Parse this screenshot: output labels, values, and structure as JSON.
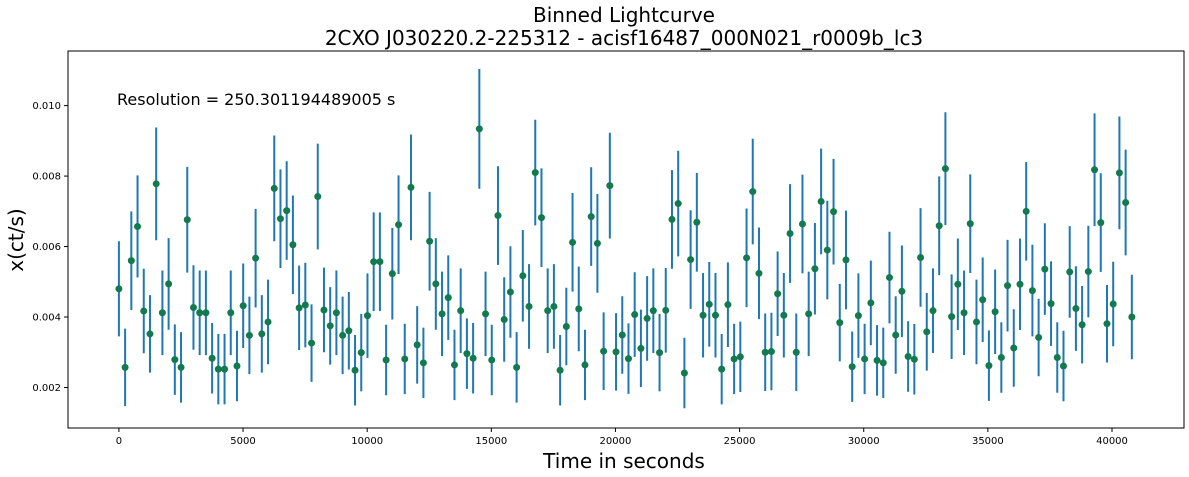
{
  "chart_data": {
    "type": "scatter",
    "title": [
      "Binned Lightcurve",
      "2CXO J030220.2-225312 - acisf16487_000N021_r0009b_lc3"
    ],
    "xlabel": "Time in seconds",
    "ylabel": "x(ct/s)",
    "annotation": "Resolution = 250.301194489005 s",
    "xlim": [
      -2050,
      42900
    ],
    "ylim": [
      0.00085,
      0.01155
    ],
    "xticks": [
      0,
      5000,
      10000,
      15000,
      20000,
      25000,
      30000,
      35000,
      40000
    ],
    "yticks": [
      0.002,
      0.004,
      0.006,
      0.008,
      0.01
    ],
    "xtick_labels": [
      "0",
      "5000",
      "10000",
      "15000",
      "20000",
      "25000",
      "30000",
      "35000",
      "40000"
    ],
    "ytick_labels": [
      "0.002",
      "0.004",
      "0.006",
      "0.008",
      "0.010"
    ],
    "grid": false,
    "errorbar_color": "#1f77b4",
    "marker_color": "#127a4e",
    "resolution_s": 250.301194489005,
    "series": [
      {
        "y": [
          0.0048,
          0.00257,
          0.0056,
          0.00657,
          0.00417,
          0.00352,
          0.00778,
          0.00412,
          0.00494,
          0.00279,
          0.00257,
          0.00676,
          0.00427,
          0.00412,
          0.00412,
          0.00283,
          0.00252,
          0.00252,
          0.00412,
          0.00261,
          0.00432,
          0.00348,
          0.00567,
          0.00352,
          0.00386,
          0.00765,
          0.00679,
          0.00702,
          0.00605,
          0.00426,
          0.00434,
          0.00326,
          0.00742,
          0.0042,
          0.00375,
          0.00412,
          0.00348,
          0.00361,
          0.00249,
          0.00299,
          0.00404,
          0.00557,
          0.00557,
          0.00278,
          0.00523,
          0.00662,
          0.00281,
          0.00768,
          0.00321,
          0.0027,
          0.00615,
          0.00494,
          0.00409,
          0.00455,
          0.00264,
          0.00418,
          0.00296,
          0.00283,
          0.00934,
          0.00409,
          0.00278,
          0.00688,
          0.00393,
          0.00471,
          0.00257,
          0.00517,
          0.0043,
          0.0081,
          0.00682,
          0.00418,
          0.0043,
          0.00249,
          0.00373,
          0.00612,
          0.00423,
          0.00264,
          0.00685,
          0.00609,
          0.00303,
          0.00773,
          0.00301,
          0.00349,
          0.00282,
          0.00407,
          0.00311,
          0.00396,
          0.00418,
          0.00299,
          0.00419,
          0.00677,
          0.00722,
          0.00241,
          0.00563,
          0.00669,
          0.00405,
          0.00436,
          0.00405,
          0.00252,
          0.00435,
          0.00281,
          0.00287,
          0.00568,
          0.00756,
          0.00524,
          0.003,
          0.00302,
          0.00466,
          0.00405,
          0.00637,
          0.003,
          0.00664,
          0.00409,
          0.00537,
          0.00728,
          0.0059,
          0.00699,
          0.00384,
          0.00562,
          0.00259,
          0.00404,
          0.00281,
          0.0044,
          0.00277,
          0.0027,
          0.00512,
          0.00349,
          0.00473,
          0.00288,
          0.0028,
          0.00569,
          0.00358,
          0.00418,
          0.00659,
          0.00821,
          0.00401,
          0.00493,
          0.00412,
          0.00665,
          0.00386,
          0.00449,
          0.00262,
          0.00415,
          0.00285,
          0.00489,
          0.00312,
          0.00493,
          0.007,
          0.00475,
          0.00342,
          0.00536,
          0.00438,
          0.00285,
          0.00261,
          0.00528,
          0.00424,
          0.00378,
          0.00529,
          0.00818,
          0.00668,
          0.00381,
          0.00437,
          0.00809,
          0.00725,
          0.004
        ],
        "yerr": [
          0.00135,
          0.0011,
          0.0014,
          0.00145,
          0.0012,
          0.0011,
          0.0016,
          0.0012,
          0.0013,
          0.001,
          0.001,
          0.0015,
          0.0012,
          0.0012,
          0.0012,
          0.001,
          0.001,
          0.001,
          0.0012,
          0.001,
          0.0012,
          0.0011,
          0.0014,
          0.0011,
          0.0012,
          0.0015,
          0.0014,
          0.0014,
          0.0014,
          0.0012,
          0.0012,
          0.0011,
          0.0015,
          0.0012,
          0.0011,
          0.0012,
          0.0011,
          0.0011,
          0.001,
          0.0011,
          0.0012,
          0.0014,
          0.0014,
          0.001,
          0.0013,
          0.0014,
          0.001,
          0.0015,
          0.0011,
          0.001,
          0.0014,
          0.0013,
          0.0012,
          0.0012,
          0.001,
          0.0012,
          0.001,
          0.001,
          0.0017,
          0.0012,
          0.001,
          0.0014,
          0.0012,
          0.0013,
          0.001,
          0.0013,
          0.0012,
          0.0015,
          0.0014,
          0.0012,
          0.0012,
          0.001,
          0.0011,
          0.0014,
          0.0012,
          0.001,
          0.0014,
          0.0014,
          0.0011,
          0.0015,
          0.0011,
          0.0011,
          0.001,
          0.0012,
          0.0011,
          0.0012,
          0.0012,
          0.0011,
          0.0012,
          0.0014,
          0.0015,
          0.001,
          0.0014,
          0.0014,
          0.0012,
          0.0012,
          0.0012,
          0.001,
          0.0012,
          0.001,
          0.001,
          0.0014,
          0.0015,
          0.0013,
          0.0011,
          0.0011,
          0.0012,
          0.0012,
          0.0014,
          0.0011,
          0.0014,
          0.0012,
          0.0013,
          0.0015,
          0.0014,
          0.0015,
          0.0011,
          0.0014,
          0.001,
          0.0012,
          0.001,
          0.0012,
          0.001,
          0.001,
          0.0013,
          0.0011,
          0.0013,
          0.001,
          0.001,
          0.0014,
          0.0011,
          0.0012,
          0.0014,
          0.0016,
          0.0012,
          0.0013,
          0.0012,
          0.0014,
          0.0012,
          0.0012,
          0.001,
          0.0012,
          0.001,
          0.0013,
          0.0011,
          0.0013,
          0.0014,
          0.0013,
          0.0011,
          0.0013,
          0.0012,
          0.001,
          0.001,
          0.0013,
          0.0012,
          0.0011,
          0.0013,
          0.0016,
          0.0014,
          0.0011,
          0.0012,
          0.0016,
          0.0015,
          0.0012
        ]
      }
    ]
  }
}
